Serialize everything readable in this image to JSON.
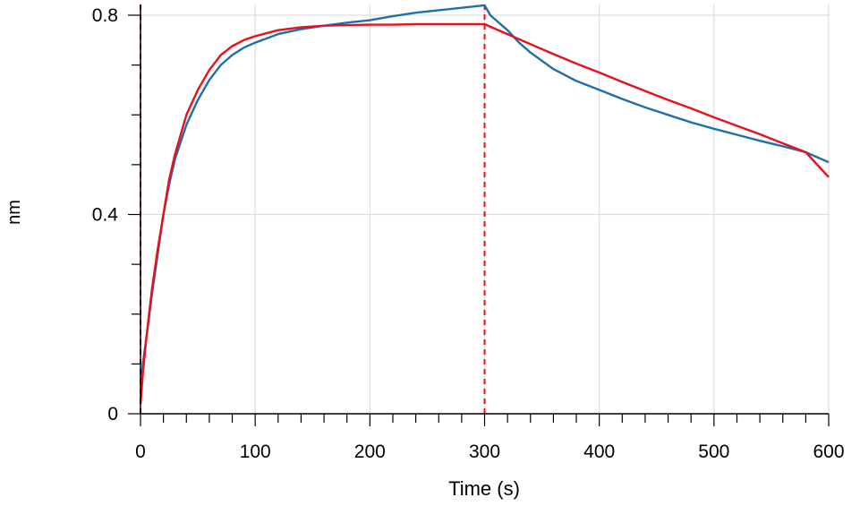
{
  "chart_data": {
    "type": "line",
    "title": "",
    "xlabel": "Time (s)",
    "ylabel": "nm",
    "xlim": [
      0,
      600
    ],
    "ylim": [
      0,
      0.8
    ],
    "x_ticks": [
      0,
      100,
      200,
      300,
      400,
      500,
      600
    ],
    "x_tick_labels": [
      "0",
      "100",
      "200",
      "300",
      "400",
      "500",
      "600"
    ],
    "y_ticks": [
      0,
      0.4,
      0.8
    ],
    "y_tick_labels": [
      "0",
      "0.4",
      "0.8"
    ],
    "grid": true,
    "legend": "none",
    "vertical_markers": [
      0,
      300
    ],
    "marker_color": "#e8101a",
    "series": [
      {
        "color": "#1f6fa8",
        "role": "measured",
        "x": [
          0,
          2,
          5,
          10,
          15,
          20,
          25,
          30,
          40,
          50,
          60,
          70,
          80,
          90,
          100,
          120,
          140,
          160,
          180,
          200,
          220,
          240,
          260,
          280,
          300,
          305,
          310,
          320,
          330,
          340,
          360,
          380,
          400,
          420,
          440,
          460,
          480,
          500,
          520,
          540,
          560,
          580,
          600
        ],
        "y": [
          0.02,
          0.1,
          0.15,
          0.24,
          0.32,
          0.4,
          0.46,
          0.51,
          0.58,
          0.63,
          0.67,
          0.7,
          0.72,
          0.735,
          0.745,
          0.762,
          0.772,
          0.779,
          0.785,
          0.79,
          0.798,
          0.805,
          0.81,
          0.815,
          0.82,
          0.8,
          0.79,
          0.77,
          0.745,
          0.725,
          0.692,
          0.668,
          0.65,
          0.632,
          0.615,
          0.6,
          0.585,
          0.572,
          0.56,
          0.548,
          0.537,
          0.525,
          0.505
        ]
      },
      {
        "color": "#e8101a",
        "role": "fit",
        "x": [
          0,
          2,
          5,
          10,
          15,
          20,
          25,
          30,
          40,
          50,
          60,
          70,
          80,
          90,
          100,
          120,
          140,
          160,
          180,
          200,
          220,
          240,
          260,
          280,
          300,
          310,
          320,
          340,
          360,
          380,
          400,
          420,
          440,
          460,
          480,
          500,
          520,
          540,
          560,
          580,
          600
        ],
        "y": [
          0.02,
          0.08,
          0.15,
          0.25,
          0.33,
          0.4,
          0.47,
          0.52,
          0.6,
          0.65,
          0.69,
          0.72,
          0.738,
          0.75,
          0.758,
          0.77,
          0.776,
          0.779,
          0.78,
          0.781,
          0.781,
          0.782,
          0.782,
          0.782,
          0.782,
          0.772,
          0.762,
          0.742,
          0.722,
          0.703,
          0.685,
          0.666,
          0.648,
          0.63,
          0.613,
          0.595,
          0.578,
          0.561,
          0.543,
          0.525,
          0.475
        ]
      }
    ]
  }
}
